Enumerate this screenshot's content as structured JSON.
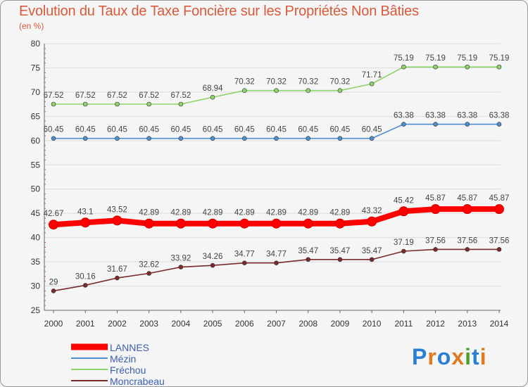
{
  "title": "Evolution du Taux de Taxe Foncière sur les Propriétés Non Bâties",
  "subtitle": "(en %)",
  "logo_text": "Proxiti",
  "chart_data": {
    "type": "line",
    "title": "Evolution du Taux de Taxe Foncière sur les Propriétés Non Bâties",
    "ylabel": "(en %)",
    "xlabel": "",
    "ylim": [
      25,
      80
    ],
    "yticks": [
      25,
      30,
      35,
      40,
      45,
      50,
      55,
      60,
      65,
      70,
      75,
      80
    ],
    "categories": [
      "2000",
      "2001",
      "2002",
      "2003",
      "2004",
      "2005",
      "2006",
      "2007",
      "2008",
      "2009",
      "2010",
      "2011",
      "2012",
      "2013",
      "2014"
    ],
    "series": [
      {
        "name": "LANNES",
        "color": "#ff0000",
        "values": [
          42.67,
          43.1,
          43.52,
          42.89,
          42.89,
          42.89,
          42.89,
          42.89,
          42.89,
          42.89,
          43.32,
          45.42,
          45.87,
          45.87,
          45.87
        ],
        "labels": [
          "42.67",
          "43.1",
          "43.52",
          "42.89",
          "42.89",
          "42.89",
          "42.89",
          "42.89",
          "42.89",
          "42.89",
          "43.32",
          "45.42",
          "45.87",
          "45.87",
          "45.87"
        ]
      },
      {
        "name": "Mézin",
        "color": "#4f8fcf",
        "values": [
          60.45,
          60.45,
          60.45,
          60.45,
          60.45,
          60.45,
          60.45,
          60.45,
          60.45,
          60.45,
          60.45,
          63.38,
          63.38,
          63.38,
          63.38
        ],
        "labels": [
          "60.45",
          "60.45",
          "60.45",
          "60.45",
          "60.45",
          "60.45",
          "60.45",
          "60.45",
          "60.45",
          "60.45",
          "60.45",
          "63.38",
          "63.38",
          "63.38",
          "63.38"
        ]
      },
      {
        "name": "Fréchou",
        "color": "#8fd46a",
        "values": [
          67.52,
          67.52,
          67.52,
          67.52,
          67.52,
          68.94,
          70.32,
          70.32,
          70.32,
          70.32,
          71.71,
          75.19,
          75.19,
          75.19,
          75.19
        ],
        "labels": [
          "67.52",
          "67.52",
          "67.52",
          "67.52",
          "67.52",
          "68.94",
          "70.32",
          "70.32",
          "70.32",
          "70.32",
          "71.71",
          "75.19",
          "75.19",
          "75.19",
          "75.19"
        ]
      },
      {
        "name": "Moncrabeau",
        "color": "#7a2a2a",
        "values": [
          29,
          30.16,
          31.67,
          32.62,
          33.92,
          34.26,
          34.77,
          34.77,
          35.47,
          35.47,
          35.47,
          37.19,
          37.56,
          37.56,
          37.56
        ],
        "labels": [
          "29",
          "30.16",
          "31.67",
          "32.62",
          "33.92",
          "34.26",
          "34.77",
          "34.77",
          "35.47",
          "35.47",
          "35.47",
          "37.19",
          "37.56",
          "37.56",
          "37.56"
        ]
      }
    ],
    "legend_position": "bottom-left"
  }
}
